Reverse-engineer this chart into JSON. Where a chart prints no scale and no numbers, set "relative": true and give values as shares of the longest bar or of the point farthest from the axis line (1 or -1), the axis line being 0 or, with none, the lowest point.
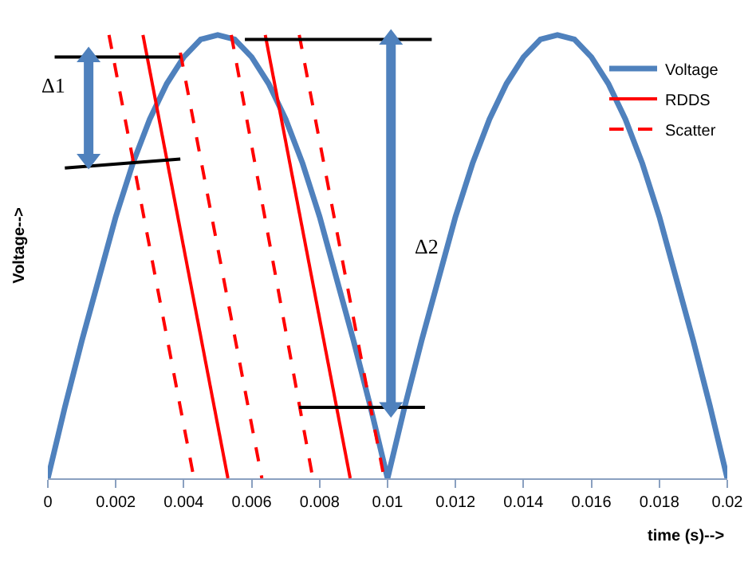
{
  "chart_data": {
    "type": "line",
    "relative": true,
    "xlabel": "time (s)-->",
    "ylabel": "Voltage-->",
    "xlim": [
      0,
      0.02
    ],
    "xticks": [
      0,
      0.002,
      0.004,
      0.006,
      0.008,
      0.01,
      0.012,
      0.014,
      0.016,
      0.018,
      0.02
    ],
    "legend": "top right",
    "series": [
      {
        "name": "Voltage",
        "color": "#4f81bd",
        "x": [
          0,
          0.0005,
          0.001,
          0.0015,
          0.002,
          0.0025,
          0.003,
          0.0035,
          0.004,
          0.0045,
          0.005,
          0.0055,
          0.006,
          0.0065,
          0.007,
          0.0075,
          0.008,
          0.0085,
          0.009,
          0.0095,
          0.01,
          0.0105,
          0.011,
          0.0115,
          0.012,
          0.0125,
          0.013,
          0.0135,
          0.014,
          0.0145,
          0.015,
          0.0155,
          0.016,
          0.0165,
          0.017,
          0.0175,
          0.018,
          0.0185,
          0.019,
          0.0195,
          0.02
        ],
        "values": [
          0,
          0.16,
          0.31,
          0.45,
          0.59,
          0.71,
          0.81,
          0.89,
          0.95,
          0.99,
          1,
          0.99,
          0.95,
          0.89,
          0.81,
          0.71,
          0.59,
          0.45,
          0.31,
          0.16,
          0,
          0.16,
          0.31,
          0.45,
          0.59,
          0.71,
          0.81,
          0.89,
          0.95,
          0.99,
          1,
          0.99,
          0.95,
          0.89,
          0.81,
          0.71,
          0.59,
          0.45,
          0.31,
          0.16,
          0
        ]
      },
      {
        "name": "RDDS",
        "color": "#ff0000",
        "x": [
          0.0028,
          0.0053,
          null,
          0.0064,
          0.0089
        ],
        "values": [
          1,
          0,
          null,
          1,
          0
        ]
      },
      {
        "name": "Scatter",
        "color": "#ff0000",
        "line_style": "dashed",
        "x": [
          0.0018,
          0.0043,
          null,
          0.0039,
          0.0063,
          null,
          0.0054,
          0.0078,
          null,
          0.0074,
          0.0099
        ],
        "values": [
          1,
          0,
          null,
          0.96,
          0,
          null,
          1,
          0,
          null,
          1,
          0
        ]
      },
      {
        "color": "#000000",
        "x": [
          0.0002,
          0.0039,
          null,
          0.0005,
          0.0039,
          null,
          0.0058,
          0.0113,
          null,
          0.0074,
          0.0111
        ],
        "values": [
          0.95,
          0.95,
          null,
          0.7,
          0.72,
          null,
          0.99,
          0.99,
          null,
          0.16,
          0.16
        ]
      },
      {
        "color": "#4f81bd",
        "marker": "triangle",
        "x": [
          0.0012,
          0.0012
        ],
        "values": [
          0.95,
          0.72
        ]
      },
      {
        "color": "#4f81bd",
        "marker": "triangle",
        "x": [
          0.0101,
          0.0101
        ],
        "values": [
          0.99,
          0.16
        ]
      }
    ],
    "annotations": [
      "Δ1",
      "Δ2"
    ]
  }
}
